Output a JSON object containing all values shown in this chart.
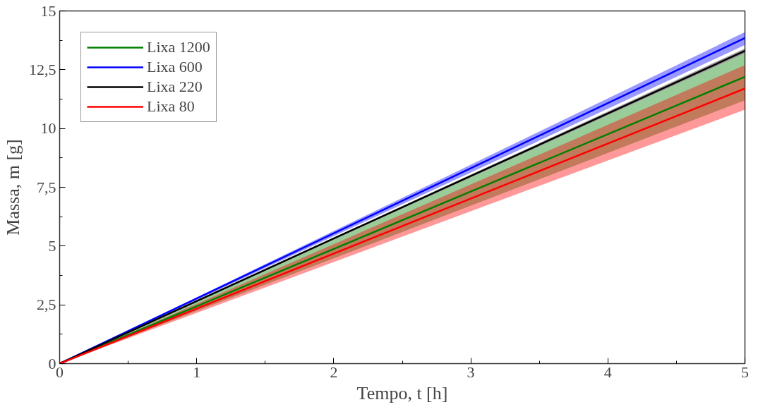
{
  "chart_data": {
    "type": "line",
    "xlabel": "Tempo, t [h]",
    "ylabel": "Massa, m [g]",
    "x": [
      0,
      5
    ],
    "series": [
      {
        "name": "Lixa 1200",
        "color": "#008000",
        "values": [
          0,
          12.2
        ],
        "lower": [
          0,
          11.2
        ],
        "upper": [
          0,
          13.2
        ]
      },
      {
        "name": "Lixa 600",
        "color": "#0000ff",
        "values": [
          0,
          13.85
        ],
        "lower": [
          0,
          13.55
        ],
        "upper": [
          0,
          14.1
        ]
      },
      {
        "name": "Lixa 220",
        "color": "#000000",
        "values": [
          0,
          13.3
        ],
        "lower": [
          0,
          13.2
        ],
        "upper": [
          0,
          13.4
        ]
      },
      {
        "name": "Lixa 80",
        "color": "#ff0000",
        "values": [
          0,
          11.7
        ],
        "lower": [
          0,
          10.8
        ],
        "upper": [
          0,
          12.7
        ]
      }
    ],
    "xlim": [
      0,
      5
    ],
    "ylim": [
      0,
      15
    ],
    "xticks": [
      0,
      1,
      2,
      3,
      4,
      5
    ],
    "yticks": [
      0,
      {
        "value": 2.5,
        "label": "2,5"
      },
      5,
      {
        "value": 7.5,
        "label": "7,5"
      },
      10,
      {
        "value": 12.5,
        "label": "12,5"
      },
      15
    ],
    "legend": "top left",
    "grid": false
  }
}
